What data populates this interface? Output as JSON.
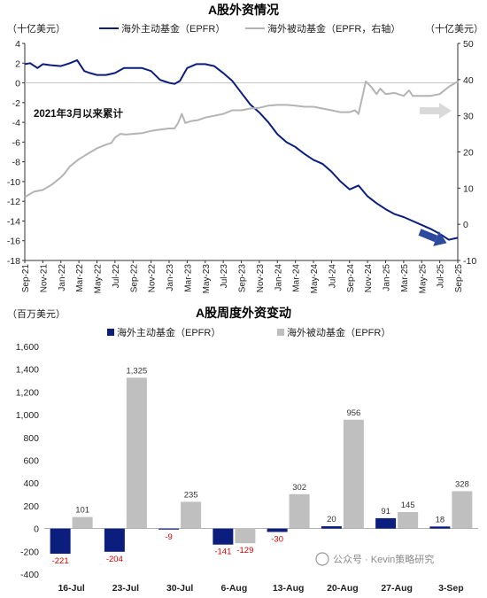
{
  "chart_data": [
    {
      "type": "line",
      "title": "A股外资情况",
      "left_unit": "（十亿美元）",
      "right_unit": "（十亿美元）",
      "annotation": "2021年3月以来累计",
      "x_ticks": [
        "Sep-21",
        "Nov-21",
        "Jan-22",
        "Mar-22",
        "May-22",
        "Jul-22",
        "Sep-22",
        "Nov-22",
        "Jan-23",
        "Mar-23",
        "May-23",
        "Jul-23",
        "Sep-23",
        "Nov-23",
        "Jan-24",
        "Mar-24",
        "May-24",
        "Jul-24",
        "Sep-24",
        "Nov-24",
        "Jan-25",
        "Mar-25",
        "May-25",
        "Jul-25",
        "Sep-25"
      ],
      "left_axis": {
        "min": -18,
        "max": 4,
        "ticks": [
          4,
          2,
          0,
          -2,
          -4,
          -6,
          -8,
          -10,
          -12,
          -14,
          -16,
          -18
        ]
      },
      "right_axis": {
        "min": -10,
        "max": 50,
        "ticks": [
          50,
          40,
          30,
          20,
          10,
          0,
          -10
        ]
      },
      "series": [
        {
          "name": "海外主动基金（EPFR）",
          "color": "#0b1e7e",
          "axis": "left",
          "points": [
            [
              0,
              1.9
            ],
            [
              0.3,
              2.0
            ],
            [
              0.7,
              1.5
            ],
            [
              1.0,
              1.9
            ],
            [
              1.4,
              1.8
            ],
            [
              2.0,
              1.7
            ],
            [
              2.5,
              2.0
            ],
            [
              2.9,
              2.3
            ],
            [
              3.3,
              1.2
            ],
            [
              3.6,
              1.0
            ],
            [
              4.0,
              0.8
            ],
            [
              4.5,
              0.8
            ],
            [
              5.0,
              1.0
            ],
            [
              5.5,
              1.5
            ],
            [
              6.0,
              1.5
            ],
            [
              6.5,
              1.5
            ],
            [
              7.0,
              1.2
            ],
            [
              7.5,
              0.3
            ],
            [
              8.0,
              0.0
            ],
            [
              8.3,
              -0.1
            ],
            [
              8.6,
              0.2
            ],
            [
              9.0,
              1.5
            ],
            [
              9.5,
              1.9
            ],
            [
              10.0,
              1.9
            ],
            [
              10.5,
              1.7
            ],
            [
              11.0,
              1.0
            ],
            [
              11.5,
              0.2
            ],
            [
              12.0,
              -1.0
            ],
            [
              12.5,
              -2.2
            ],
            [
              13.0,
              -3.0
            ],
            [
              13.5,
              -4.0
            ],
            [
              14.0,
              -5.2
            ],
            [
              14.5,
              -6.0
            ],
            [
              15.0,
              -6.5
            ],
            [
              15.5,
              -7.2
            ],
            [
              16.0,
              -7.8
            ],
            [
              16.5,
              -8.2
            ],
            [
              17.0,
              -9.0
            ],
            [
              17.5,
              -10.0
            ],
            [
              18.0,
              -10.8
            ],
            [
              18.5,
              -10.4
            ],
            [
              19.0,
              -11.5
            ],
            [
              19.5,
              -12.2
            ],
            [
              20.0,
              -12.8
            ],
            [
              20.5,
              -13.3
            ],
            [
              21.0,
              -13.6
            ],
            [
              21.5,
              -14.0
            ],
            [
              22.0,
              -14.4
            ],
            [
              22.5,
              -14.8
            ],
            [
              23.0,
              -15.3
            ],
            [
              23.5,
              -15.9
            ],
            [
              24.0,
              -15.7
            ]
          ]
        },
        {
          "name": "海外被动基金（EPFR，右轴）",
          "color": "#b4b4b4",
          "axis": "right",
          "points": [
            [
              0,
              7.5
            ],
            [
              0.5,
              9
            ],
            [
              1.0,
              9.5
            ],
            [
              1.5,
              11
            ],
            [
              2.0,
              13
            ],
            [
              2.2,
              14
            ],
            [
              2.5,
              16
            ],
            [
              3.0,
              18
            ],
            [
              3.5,
              19.5
            ],
            [
              4.0,
              21
            ],
            [
              4.5,
              22
            ],
            [
              4.8,
              22.5
            ],
            [
              5.0,
              24
            ],
            [
              5.3,
              25
            ],
            [
              5.6,
              24.8
            ],
            [
              6.0,
              25
            ],
            [
              6.5,
              25.2
            ],
            [
              7.0,
              25.8
            ],
            [
              7.5,
              26.2
            ],
            [
              8.0,
              26.5
            ],
            [
              8.3,
              26.5
            ],
            [
              8.5,
              28
            ],
            [
              8.7,
              30.5
            ],
            [
              8.9,
              28
            ],
            [
              9.2,
              28.5
            ],
            [
              9.6,
              28.8
            ],
            [
              10.0,
              29.5
            ],
            [
              10.5,
              30
            ],
            [
              11.0,
              30.5
            ],
            [
              11.5,
              31.5
            ],
            [
              12.0,
              31.5
            ],
            [
              12.5,
              32
            ],
            [
              13.0,
              32.2
            ],
            [
              13.5,
              32.8
            ],
            [
              14.0,
              33
            ],
            [
              14.5,
              33
            ],
            [
              15.0,
              32.8
            ],
            [
              15.5,
              32.5
            ],
            [
              16.0,
              32.5
            ],
            [
              16.5,
              32
            ],
            [
              17.0,
              31.5
            ],
            [
              17.5,
              31
            ],
            [
              18.0,
              31
            ],
            [
              18.3,
              31.5
            ],
            [
              18.5,
              30.5
            ],
            [
              18.7,
              35
            ],
            [
              18.9,
              39.5
            ],
            [
              19.2,
              38
            ],
            [
              19.5,
              36
            ],
            [
              19.7,
              37.5
            ],
            [
              20.0,
              36
            ],
            [
              20.5,
              36.3
            ],
            [
              21.0,
              35.5
            ],
            [
              21.3,
              37
            ],
            [
              21.5,
              35.5
            ],
            [
              22.0,
              35.5
            ],
            [
              22.5,
              35.5
            ],
            [
              23.0,
              36
            ],
            [
              23.5,
              38
            ],
            [
              24.0,
              39.5
            ]
          ]
        }
      ]
    },
    {
      "type": "bar",
      "title": "A股周度外资变动",
      "unit": "（百万美元）",
      "categories": [
        "16-Jul",
        "23-Jul",
        "30-Jul",
        "6-Aug",
        "13-Aug",
        "20-Aug",
        "27-Aug",
        "3-Sep"
      ],
      "ylim": [
        -400,
        1600
      ],
      "y_ticks": [
        1600,
        1400,
        1200,
        1000,
        800,
        600,
        400,
        200,
        0,
        -200,
        -400
      ],
      "series": [
        {
          "name": "海外主动基金（EPFR）",
          "color": "#0b1e7e",
          "values": [
            -221,
            -204,
            -9,
            -141,
            -30,
            20,
            91,
            18
          ]
        },
        {
          "name": "海外被动基金（EPFR）",
          "color": "#bfbfbf",
          "values": [
            101,
            1325,
            235,
            -129,
            302,
            956,
            145,
            328
          ]
        }
      ]
    }
  ],
  "watermark": "公众号 · Kevin策略研究"
}
